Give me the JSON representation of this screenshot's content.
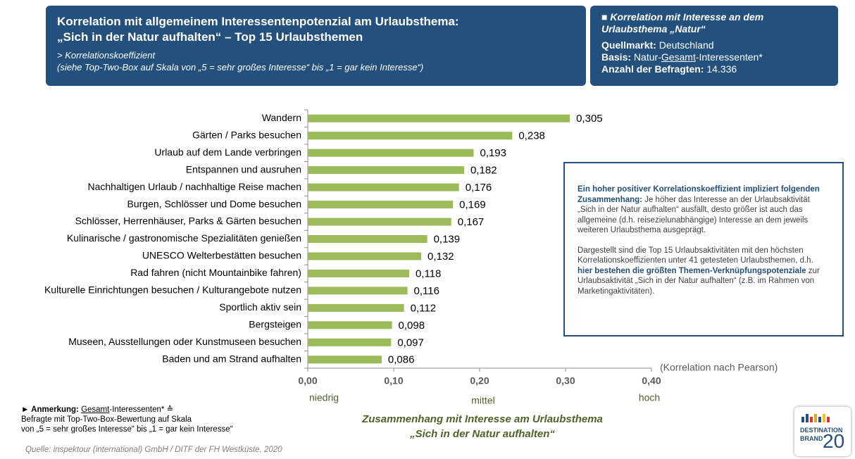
{
  "header": {
    "title": [
      "Korrelation mit allgemeinem Interessentenpotenzial am Urlaubsthema:",
      "„Sich in der Natur aufhalten“ – Top 15 Urlaubsthemen"
    ],
    "subtitle": [
      "> Korrelationskoeffizient",
      "(siehe Top-Two-Box auf Skala von „5 = sehr großes Interesse“ bis „1 = gar kein Interesse“)"
    ]
  },
  "side_box": {
    "title": [
      "■ Korrelation mit Interesse an dem",
      "Urlaubsthema „Natur“"
    ],
    "rows": [
      [
        "Quellmarkt:",
        "Deutschland"
      ],
      [
        "Basis:",
        "Natur-",
        "Gesamt",
        "-Interessenten*"
      ],
      [
        "Anzahl der Befragten:",
        "14.336"
      ]
    ]
  },
  "chart_data": {
    "type": "bar",
    "orientation": "horizontal",
    "categories": [
      "Wandern",
      "Gärten / Parks besuchen",
      "Urlaub auf dem Lande verbringen",
      "Entspannen und ausruhen",
      "Nachhaltigen Urlaub / nachhaltige Reise machen",
      "Burgen, Schlösser und Dome besuchen",
      "Schlösser, Herrenhäuser, Parks & Gärten besuchen",
      "Kulinarische / gastronomische Spezialitäten genießen",
      "UNESCO Welterbestätten besuchen",
      "Rad fahren (nicht Mountainbike fahren)",
      "Kulturelle Einrichtungen besuchen / Kulturangebote nutzen",
      "Sportlich aktiv sein",
      "Bergsteigen",
      "Museen, Ausstellungen oder Kunstmuseen besuchen",
      "Baden und am Strand aufhalten"
    ],
    "values": [
      0.305,
      0.238,
      0.193,
      0.182,
      0.176,
      0.169,
      0.167,
      0.139,
      0.132,
      0.118,
      0.116,
      0.112,
      0.098,
      0.097,
      0.086
    ],
    "value_labels": [
      "0,305",
      "0,238",
      "0,193",
      "0,182",
      "0,176",
      "0,169",
      "0,167",
      "0,139",
      "0,132",
      "0,118",
      "0,116",
      "0,112",
      "0,098",
      "0,097",
      "0,086"
    ],
    "color": "#9bbb59",
    "xlim": [
      0,
      0.4
    ],
    "xticks": [
      {
        "value": 0,
        "label": "0,00"
      },
      {
        "value": 0.1,
        "label": "0,10"
      },
      {
        "value": 0.2,
        "label": "0,20"
      },
      {
        "value": 0.3,
        "label": "0,30"
      },
      {
        "value": 0.4,
        "label": "0,40"
      }
    ],
    "x_axis_note": "(Korrelation nach Pearson)",
    "scale_labels": [
      "niedrig",
      "mittel",
      "hoch"
    ],
    "x_label": [
      "Zusammenhang mit Interesse am Urlaubsthema",
      "„Sich in der Natur aufhalten“"
    ]
  },
  "info_box": {
    "paragraphs": [
      [
        "Ein hoher positiver Korrelationskoeffizient impliziert folgenden Zusammenhang:",
        " Je höher das Interesse an der Urlaubsaktivität „Sich in der Natur aufhalten“ ausfällt, desto größer ist auch das allgemeine (d.h. reisezielunabhängige) Interesse an dem jeweils weiteren Urlaubsthema ausgeprägt."
      ],
      [
        "Dargestellt sind die Top 15 Urlaubsaktivitäten mit den höchsten Korrelationskoeffizienten unter 41 getesteten Urlaubsthemen, d.h. ",
        "hier bestehen die größten Themen-Verknüpfungspotenziale",
        " zur Urlaubsaktivität „Sich in der Natur aufhalten“ (z.B. im Rahmen von Marketingaktivitäten)."
      ]
    ]
  },
  "note": {
    "lines": [
      [
        "► Anmerkung:",
        "Gesamt",
        "-Interessenten* ≙"
      ],
      [
        "Befragte mit Top-Two-Box-Bewertung auf Skala"
      ],
      [
        "von „5 = sehr großes Interesse“ bis „1 = gar kein Interesse“"
      ]
    ]
  },
  "source": "Quelle: inspektour (international) GmbH / DITF der FH Westküste, 2020",
  "logo": {
    "line1": "DESTINATION",
    "line2": "BRAND",
    "number": "20"
  }
}
